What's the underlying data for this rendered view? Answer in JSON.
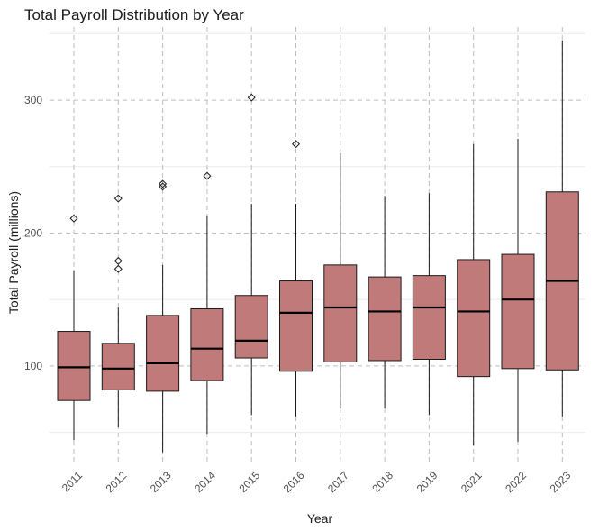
{
  "chart_data": {
    "type": "boxplot",
    "title": "Total Payroll Distribution by Year",
    "xlabel": "Year",
    "ylabel": "Total Payroll (millions)",
    "ylim": [
      28,
      355
    ],
    "y_ticks": [
      100,
      200,
      300
    ],
    "grid": true,
    "box_fill": "#c17a7a",
    "categories": [
      "2011",
      "2012",
      "2013",
      "2014",
      "2015",
      "2016",
      "2017",
      "2018",
      "2019",
      "2021",
      "2022",
      "2023"
    ],
    "boxes": [
      {
        "year": "2011",
        "min": 44,
        "q1": 74,
        "median": 99,
        "q3": 126,
        "max": 172,
        "outliers": [
          211
        ]
      },
      {
        "year": "2012",
        "min": 54,
        "q1": 82,
        "median": 98,
        "q3": 117,
        "max": 144,
        "outliers": [
          173,
          179,
          226
        ]
      },
      {
        "year": "2013",
        "min": 35,
        "q1": 81,
        "median": 102,
        "q3": 138,
        "max": 176,
        "outliers": [
          235,
          237
        ]
      },
      {
        "year": "2014",
        "min": 49,
        "q1": 89,
        "median": 113,
        "q3": 143,
        "max": 213,
        "outliers": [
          243
        ]
      },
      {
        "year": "2015",
        "min": 63,
        "q1": 106,
        "median": 119,
        "q3": 153,
        "max": 222,
        "outliers": [
          302
        ]
      },
      {
        "year": "2016",
        "min": 62,
        "q1": 96,
        "median": 140,
        "q3": 164,
        "max": 222,
        "outliers": [
          267
        ]
      },
      {
        "year": "2017",
        "min": 68,
        "q1": 103,
        "median": 144,
        "q3": 176,
        "max": 260,
        "outliers": []
      },
      {
        "year": "2018",
        "min": 68,
        "q1": 104,
        "median": 141,
        "q3": 167,
        "max": 228,
        "outliers": []
      },
      {
        "year": "2019",
        "min": 63,
        "q1": 105,
        "median": 144,
        "q3": 168,
        "max": 230,
        "outliers": []
      },
      {
        "year": "2021",
        "min": 40,
        "q1": 92,
        "median": 141,
        "q3": 180,
        "max": 267,
        "outliers": []
      },
      {
        "year": "2022",
        "min": 43,
        "q1": 98,
        "median": 150,
        "q3": 184,
        "max": 271,
        "outliers": []
      },
      {
        "year": "2023",
        "min": 62,
        "q1": 97,
        "median": 164,
        "q3": 231,
        "max": 345,
        "outliers": []
      }
    ]
  }
}
